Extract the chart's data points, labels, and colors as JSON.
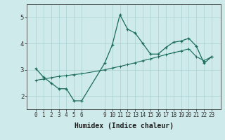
{
  "xlabel": "Humidex (Indice chaleur)",
  "background_color": "#ceeaea",
  "grid_color": "#aacfcf",
  "line_color": "#1a6b5a",
  "line1_x": [
    0,
    1,
    2,
    3,
    4,
    5,
    6,
    9,
    10,
    11,
    12,
    13,
    14,
    15,
    16,
    17,
    18,
    19,
    20,
    21,
    22,
    23
  ],
  "line1_y": [
    3.05,
    2.72,
    2.5,
    2.28,
    2.28,
    1.82,
    1.82,
    3.25,
    3.95,
    5.1,
    4.55,
    4.4,
    4.0,
    3.6,
    3.6,
    3.85,
    4.05,
    4.1,
    4.2,
    3.9,
    3.25,
    3.5
  ],
  "line2_x": [
    0,
    1,
    2,
    3,
    4,
    5,
    6,
    9,
    10,
    11,
    12,
    13,
    14,
    15,
    16,
    17,
    18,
    19,
    20,
    21,
    22,
    23
  ],
  "line2_y": [
    2.6,
    2.65,
    2.7,
    2.75,
    2.78,
    2.82,
    2.85,
    3.0,
    3.07,
    3.13,
    3.2,
    3.27,
    3.35,
    3.42,
    3.5,
    3.58,
    3.65,
    3.72,
    3.8,
    3.5,
    3.35,
    3.5
  ],
  "ylim": [
    1.5,
    5.5
  ],
  "yticks": [
    2,
    3,
    4,
    5
  ],
  "xticks": [
    0,
    1,
    2,
    3,
    4,
    5,
    6,
    9,
    10,
    11,
    12,
    13,
    14,
    15,
    16,
    17,
    18,
    19,
    20,
    21,
    22,
    23
  ]
}
